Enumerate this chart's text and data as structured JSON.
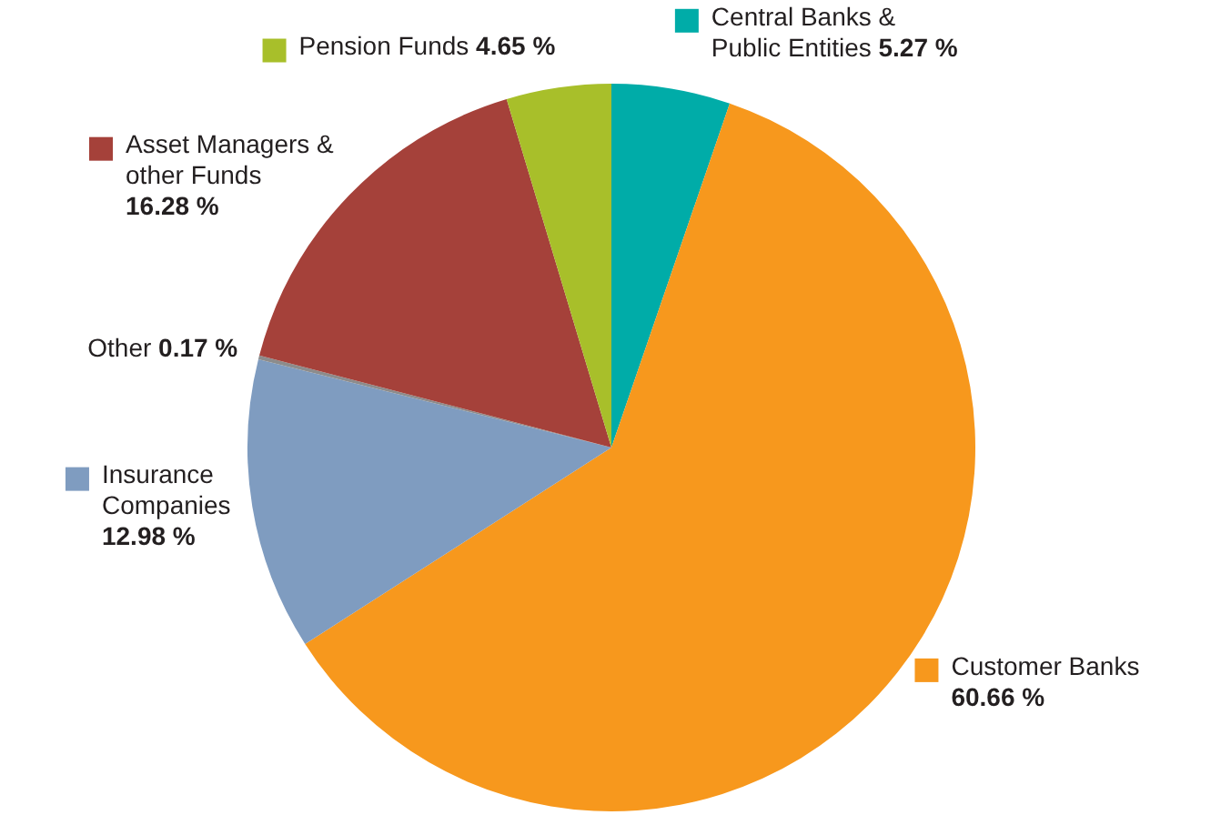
{
  "chart_data": {
    "type": "pie",
    "categories": [
      "Central Banks & Public Entities",
      "Customer Banks",
      "Insurance Companies",
      "Other",
      "Asset Managers & other Funds",
      "Pension Funds"
    ],
    "values": [
      5.27,
      60.66,
      12.98,
      0.17,
      16.28,
      4.65
    ],
    "colors": [
      "#00aca8",
      "#f7981d",
      "#7f9cc0",
      "#8c8c8c",
      "#a5413a",
      "#a8bf2a"
    ],
    "value_labels": [
      "5.27 %",
      "60.66 %",
      "12.98 %",
      "0.17 %",
      "16.28 %",
      "4.65 %"
    ],
    "legend": "top left"
  }
}
